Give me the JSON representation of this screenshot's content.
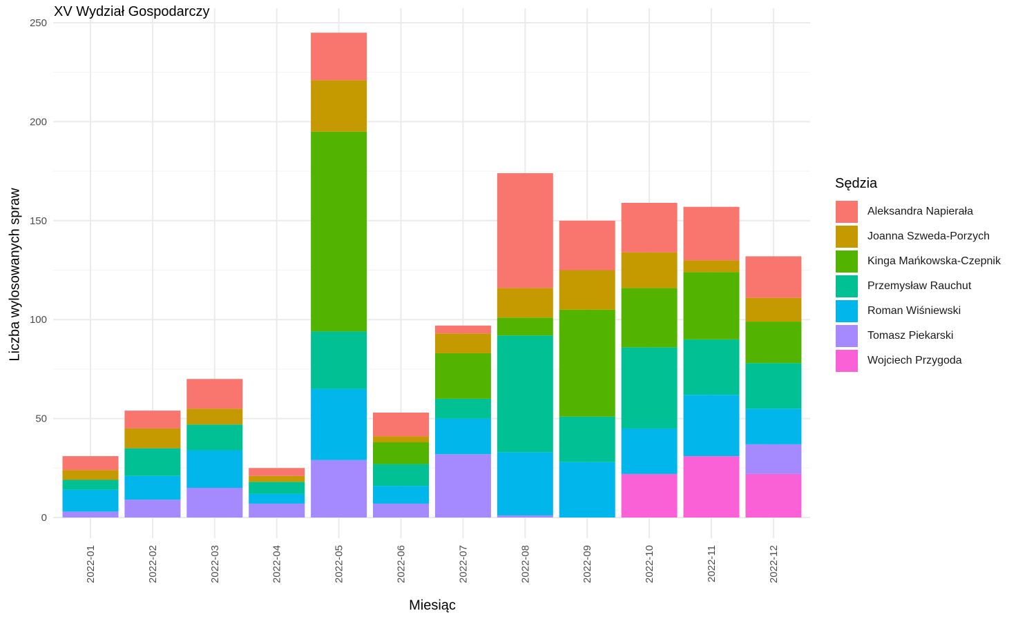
{
  "chart_data": {
    "type": "bar",
    "stacked": true,
    "title": "XV Wydział Gospodarczy",
    "xlabel": "Miesiąc",
    "ylabel": "Liczba wylosowanych spraw",
    "ylim": [
      0,
      250
    ],
    "yticks": [
      0,
      50,
      100,
      150,
      200,
      250
    ],
    "grid": true,
    "legend_title": "Sędzia",
    "legend_position": "right",
    "categories": [
      "2022-01",
      "2022-02",
      "2022-03",
      "2022-04",
      "2022-05",
      "2022-06",
      "2022-07",
      "2022-08",
      "2022-09",
      "2022-10",
      "2022-11",
      "2022-12"
    ],
    "series": [
      {
        "name": "Aleksandra Napierała",
        "color": "#F8766D",
        "values": [
          7,
          9,
          15,
          4,
          24,
          12,
          4,
          58,
          25,
          25,
          27,
          21
        ]
      },
      {
        "name": "Joanna Szweda-Porzych",
        "color": "#C49A00",
        "values": [
          5,
          10,
          8,
          3,
          26,
          3,
          10,
          15,
          20,
          18,
          6,
          12
        ]
      },
      {
        "name": "Kinga Mańkowska-Czepnik",
        "color": "#53B400",
        "values": [
          0,
          0,
          0,
          0,
          101,
          11,
          23,
          9,
          54,
          30,
          34,
          21
        ]
      },
      {
        "name": "Przemysław Rauchut",
        "color": "#00C094",
        "values": [
          5,
          14,
          13,
          6,
          29,
          11,
          10,
          59,
          23,
          41,
          28,
          23
        ]
      },
      {
        "name": "Roman Wiśniewski",
        "color": "#00B6EB",
        "values": [
          11,
          12,
          19,
          5,
          36,
          9,
          18,
          32,
          28,
          23,
          31,
          18
        ]
      },
      {
        "name": "Tomasz Piekarski",
        "color": "#A58AFF",
        "values": [
          3,
          9,
          15,
          7,
          29,
          7,
          32,
          1,
          0,
          0,
          0,
          15
        ]
      },
      {
        "name": "Wojciech Przygoda",
        "color": "#FB61D7",
        "values": [
          0,
          0,
          0,
          0,
          0,
          0,
          0,
          0,
          0,
          22,
          31,
          22
        ]
      }
    ]
  }
}
